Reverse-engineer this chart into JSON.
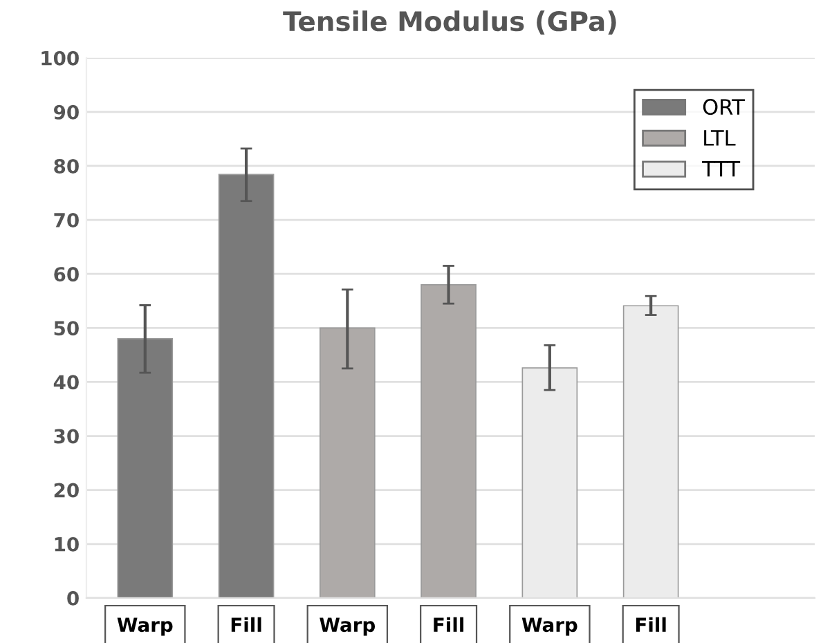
{
  "chart_data": {
    "type": "bar",
    "title": "Tensile Modulus (GPa)",
    "categories": [
      "Warp",
      "Fill",
      "Warp",
      "Fill",
      "Warp",
      "Fill"
    ],
    "series": [
      {
        "name": "ORT",
        "color": "#7a7a7a",
        "values": [
          48,
          78.4,
          null,
          null,
          null,
          null
        ],
        "errors": [
          [
            41.7,
            54.2
          ],
          [
            73.5,
            83.2
          ],
          null,
          null,
          null,
          null
        ]
      },
      {
        "name": "LTL",
        "color": "#aeaaa8",
        "values": [
          null,
          null,
          50,
          58,
          null,
          null
        ],
        "errors": [
          null,
          null,
          [
            42.5,
            57.1
          ],
          [
            54.5,
            61.5
          ],
          null,
          null
        ]
      },
      {
        "name": "TTT",
        "color": "#ececec",
        "values": [
          null,
          null,
          null,
          null,
          42.6,
          54.1
        ],
        "errors": [
          null,
          null,
          null,
          null,
          [
            38.5,
            46.8
          ],
          [
            52.4,
            55.9
          ]
        ]
      }
    ],
    "ylim": [
      0,
      100
    ],
    "yticks": [
      0,
      10,
      20,
      30,
      40,
      50,
      60,
      70,
      80,
      90,
      100
    ],
    "grid": "y",
    "legend": "top right"
  }
}
